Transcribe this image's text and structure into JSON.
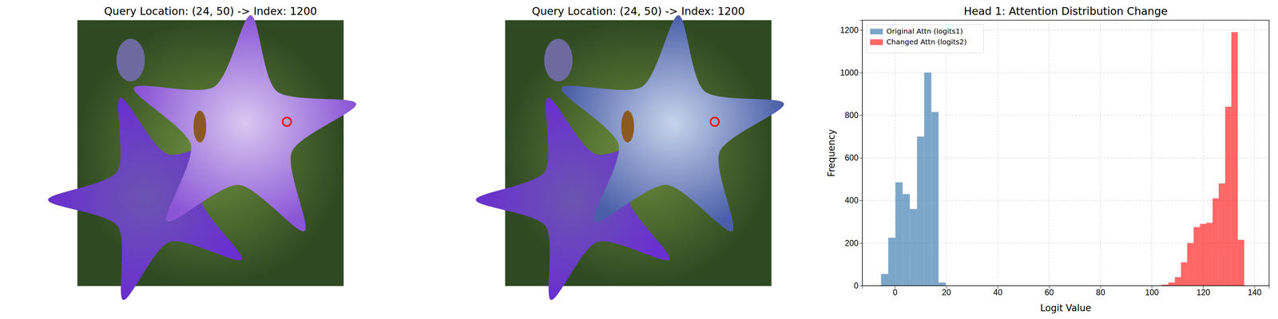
{
  "images": [
    {
      "title": "Query Location: (24, 50) -> Index: 1200"
    },
    {
      "title": "Query Location: (24, 50) -> Index: 1200"
    }
  ],
  "chart_data": {
    "type": "histogram",
    "title": "Head 1: Attention Distribution Change",
    "x_label": "Logit Value",
    "y_label": "Frequency",
    "xlim": [
      -12.7,
      145.7
    ],
    "ylim": [
      0,
      1246
    ],
    "xticks": [
      0,
      20,
      40,
      60,
      80,
      100,
      120,
      140
    ],
    "yticks": [
      0,
      200,
      400,
      600,
      800,
      1000,
      1200
    ],
    "grid": true,
    "legend": "upper-left",
    "series": [
      {
        "name": "Original Attn (logits1)",
        "color": "#4682b4",
        "bins": [
          -5.4,
          -2.6,
          0.2,
          3.0,
          5.8,
          8.6,
          11.4,
          14.2,
          17.0,
          19.8
        ],
        "values": [
          55,
          225,
          485,
          430,
          360,
          700,
          1000,
          815,
          15
        ]
      },
      {
        "name": "Changed Attn (logits2)",
        "color": "#ff0000",
        "bins": [
          104,
          106.5,
          109,
          111.4,
          113.8,
          116.3,
          118.8,
          121.2,
          123.7,
          126.1,
          128.6,
          131,
          133.5,
          136
        ],
        "values": [
          5,
          15,
          40,
          110,
          200,
          275,
          290,
          295,
          410,
          480,
          840,
          1190,
          215
        ]
      }
    ]
  }
}
